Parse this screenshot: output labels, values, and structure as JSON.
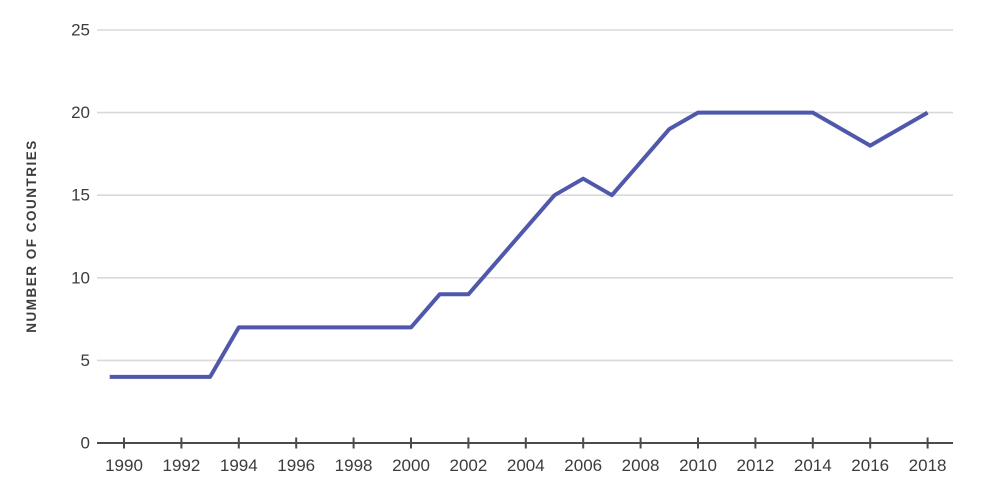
{
  "chart_data": {
    "type": "line",
    "title": "",
    "xlabel": "",
    "ylabel": "NUMBER OF COUNTRIES",
    "x": [
      1990,
      1991,
      1992,
      1993,
      1994,
      1995,
      1996,
      1997,
      1998,
      1999,
      2000,
      2001,
      2002,
      2003,
      2004,
      2005,
      2006,
      2007,
      2008,
      2009,
      2010,
      2011,
      2012,
      2013,
      2014,
      2015,
      2016,
      2017,
      2018
    ],
    "values": [
      4,
      4,
      4,
      4,
      7,
      7,
      7,
      7,
      7,
      7,
      7,
      9,
      9,
      11,
      13,
      15,
      16,
      15,
      17,
      19,
      20,
      20,
      20,
      20,
      20,
      19,
      18,
      19,
      20
    ],
    "series_name": "Number of countries",
    "x_tick_labels": [
      "1990",
      "1992",
      "1994",
      "1996",
      "1998",
      "2000",
      "2002",
      "2004",
      "2006",
      "2008",
      "2010",
      "2012",
      "2014",
      "2016",
      "2018"
    ],
    "x_tick_years": [
      1990,
      1992,
      1994,
      1996,
      1998,
      2000,
      2002,
      2004,
      2006,
      2008,
      2010,
      2012,
      2014,
      2016,
      2018
    ],
    "y_ticks": [
      0,
      5,
      10,
      15,
      20,
      25
    ],
    "ylim": [
      0,
      25
    ],
    "xlim": [
      1989.5,
      2018.3
    ],
    "grid": "horizontal-only",
    "legend": "none",
    "line_draw_start_year": 1989.5,
    "colors": {
      "line": "#4f58ab",
      "grid": "#d9d9d9",
      "axis": "#4b4b4b",
      "text": "#3c3c3c",
      "background": "#ffffff"
    }
  }
}
